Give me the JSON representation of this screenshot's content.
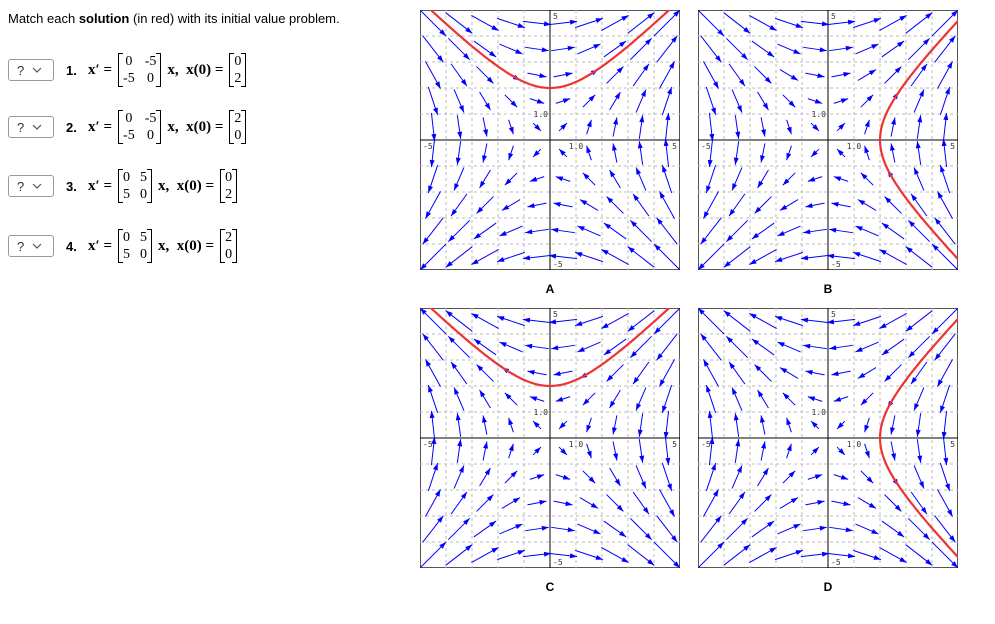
{
  "instruction": {
    "before": "Match each ",
    "bold": "solution",
    "after": " (in red) with its initial value problem."
  },
  "problems": [
    {
      "select": "?",
      "number": "1.",
      "lhs": "x′ =",
      "matrix": [
        [
          0,
          -5
        ],
        [
          -5,
          0
        ]
      ],
      "mid": "x,  x(0) =",
      "x0": [
        0,
        2
      ]
    },
    {
      "select": "?",
      "number": "2.",
      "lhs": "x′ =",
      "matrix": [
        [
          0,
          -5
        ],
        [
          -5,
          0
        ]
      ],
      "mid": "x,  x(0) =",
      "x0": [
        2,
        0
      ]
    },
    {
      "select": "?",
      "number": "3.",
      "lhs": "x′ =",
      "matrix": [
        [
          0,
          5
        ],
        [
          5,
          0
        ]
      ],
      "mid": "x,  x(0) =",
      "x0": [
        0,
        2
      ]
    },
    {
      "select": "?",
      "number": "4.",
      "lhs": "x′ =",
      "matrix": [
        [
          0,
          5
        ],
        [
          5,
          0
        ]
      ],
      "mid": "x,  x(0) =",
      "x0": [
        2,
        0
      ]
    }
  ],
  "graphs": [
    {
      "label": "A"
    },
    {
      "label": "B"
    },
    {
      "label": "C"
    },
    {
      "label": "D"
    }
  ],
  "axis_labels": {
    "x_min": "-5",
    "x_max": "5",
    "y_min": "-5",
    "y_max": "5",
    "x_unit": "1.0",
    "y_unit": "1.0"
  }
}
